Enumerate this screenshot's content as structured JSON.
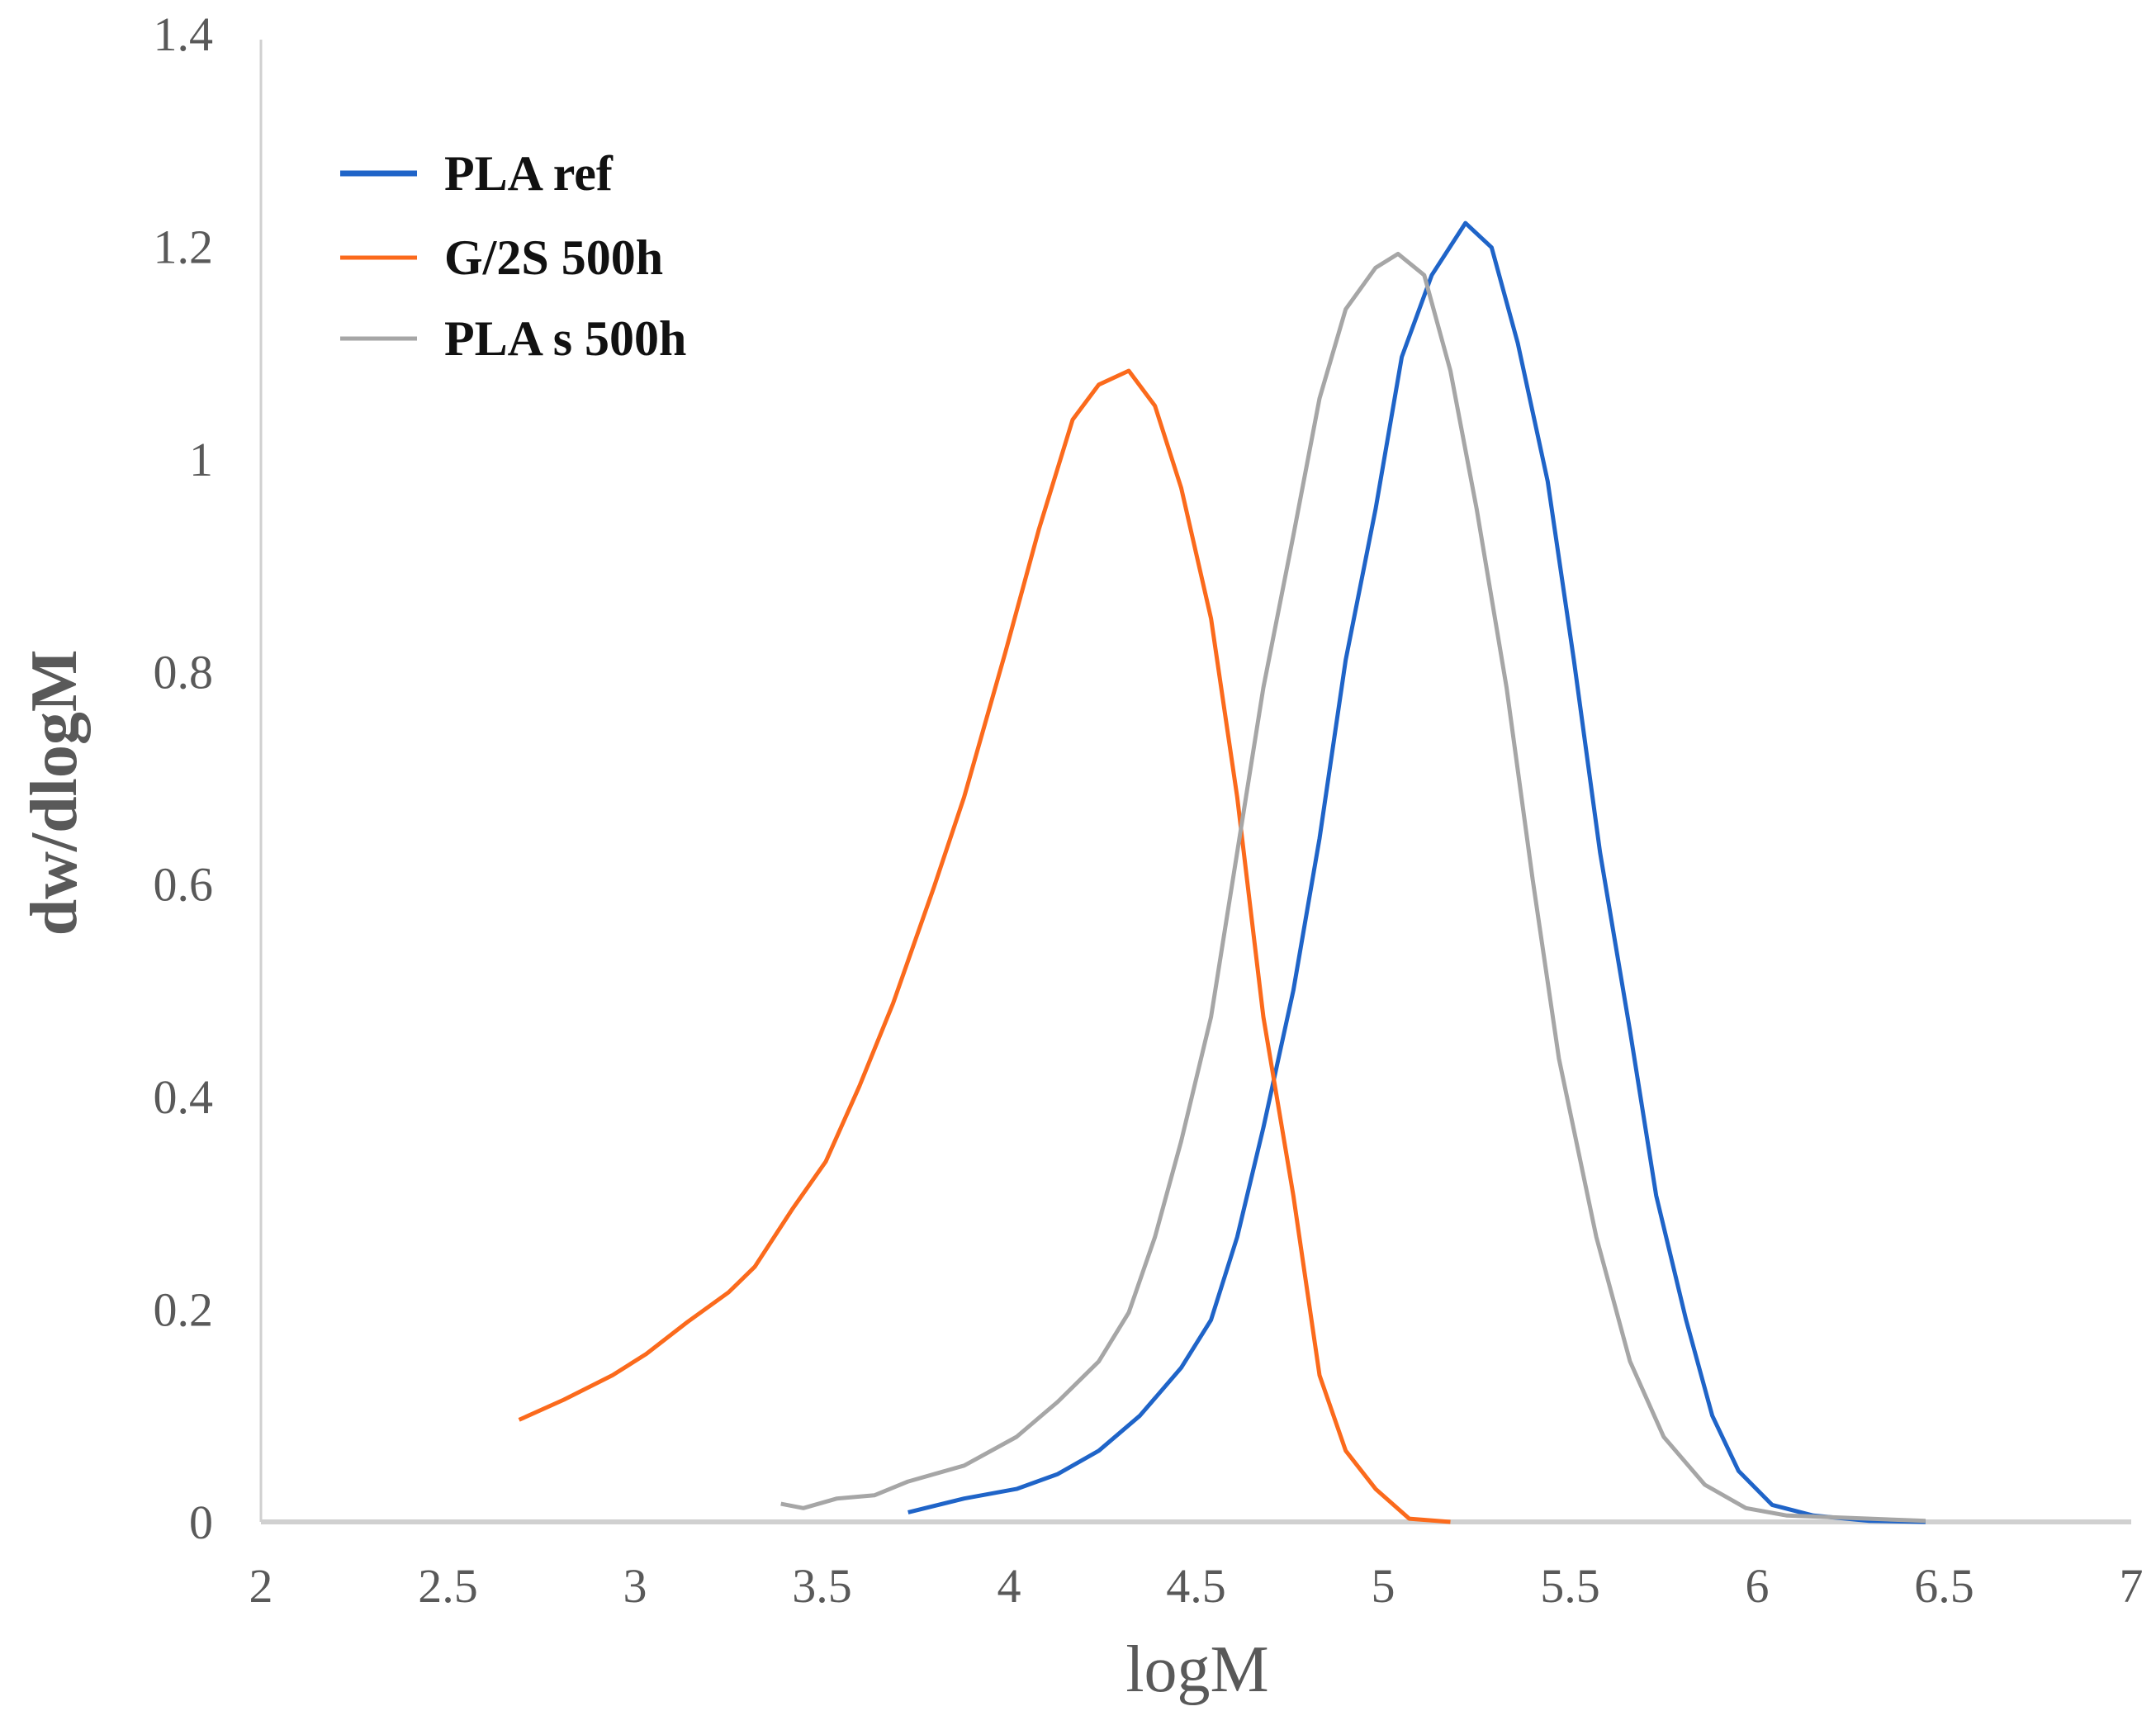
{
  "chart_data": {
    "type": "line",
    "title": "",
    "xlabel": "logM",
    "ylabel": "dw/dlogM",
    "xlim": [
      2,
      7
    ],
    "ylim": [
      0,
      1.4
    ],
    "xticks": [
      "2",
      "2.5",
      "3",
      "3.5",
      "4",
      "4.5",
      "5",
      "5.5",
      "6",
      "6.5",
      "7"
    ],
    "yticks": [
      "0",
      "0.2",
      "0.4",
      "0.6",
      "0.8",
      "1",
      "1.2",
      "1.4"
    ],
    "grid": false,
    "legend_placement": "top-left",
    "series": [
      {
        "name": "PLA ref",
        "color": "#1f64c8",
        "x": [
          3.73,
          3.88,
          4.02,
          4.13,
          4.24,
          4.35,
          4.46,
          4.54,
          4.61,
          4.68,
          4.76,
          4.83,
          4.9,
          4.98,
          5.05,
          5.13,
          5.22,
          5.29,
          5.36,
          5.44,
          5.51,
          5.58,
          5.66,
          5.73,
          5.81,
          5.88,
          5.95,
          6.04,
          6.15,
          6.3,
          6.45
        ],
        "y": [
          0.009,
          0.022,
          0.031,
          0.045,
          0.067,
          0.1,
          0.145,
          0.19,
          0.268,
          0.371,
          0.5,
          0.643,
          0.811,
          0.953,
          1.096,
          1.173,
          1.222,
          1.199,
          1.109,
          0.979,
          0.811,
          0.63,
          0.462,
          0.307,
          0.19,
          0.1,
          0.048,
          0.016,
          0.006,
          0.001,
          0
        ]
      },
      {
        "name": "G/2S 500h",
        "color": "#fb6a1c",
        "x": [
          2.69,
          2.81,
          2.94,
          3.03,
          3.14,
          3.25,
          3.32,
          3.42,
          3.51,
          3.6,
          3.69,
          3.8,
          3.88,
          3.99,
          4.08,
          4.17,
          4.24,
          4.32,
          4.39,
          4.46,
          4.54,
          4.61,
          4.68,
          4.76,
          4.83,
          4.9,
          4.98,
          5.07,
          5.18
        ],
        "y": [
          0.096,
          0.115,
          0.138,
          0.158,
          0.188,
          0.216,
          0.24,
          0.294,
          0.339,
          0.41,
          0.488,
          0.598,
          0.682,
          0.818,
          0.934,
          1.037,
          1.07,
          1.083,
          1.05,
          0.973,
          0.85,
          0.682,
          0.475,
          0.307,
          0.138,
          0.067,
          0.031,
          0.003,
          0
        ]
      },
      {
        "name": "PLA s 500h",
        "color": "#a6a6a6",
        "x": [
          3.39,
          3.45,
          3.54,
          3.64,
          3.73,
          3.88,
          4.02,
          4.13,
          4.24,
          4.32,
          4.39,
          4.46,
          4.54,
          4.61,
          4.68,
          4.76,
          4.83,
          4.9,
          4.98,
          5.04,
          5.11,
          5.18,
          5.25,
          5.33,
          5.4,
          5.47,
          5.57,
          5.66,
          5.75,
          5.86,
          5.97,
          6.08,
          6.23,
          6.45
        ],
        "y": [
          0.017,
          0.013,
          0.022,
          0.025,
          0.038,
          0.053,
          0.08,
          0.113,
          0.151,
          0.197,
          0.268,
          0.358,
          0.475,
          0.63,
          0.785,
          0.928,
          1.057,
          1.141,
          1.18,
          1.193,
          1.173,
          1.083,
          0.953,
          0.785,
          0.604,
          0.436,
          0.268,
          0.151,
          0.08,
          0.035,
          0.013,
          0.006,
          0.004,
          0.001
        ]
      }
    ]
  }
}
